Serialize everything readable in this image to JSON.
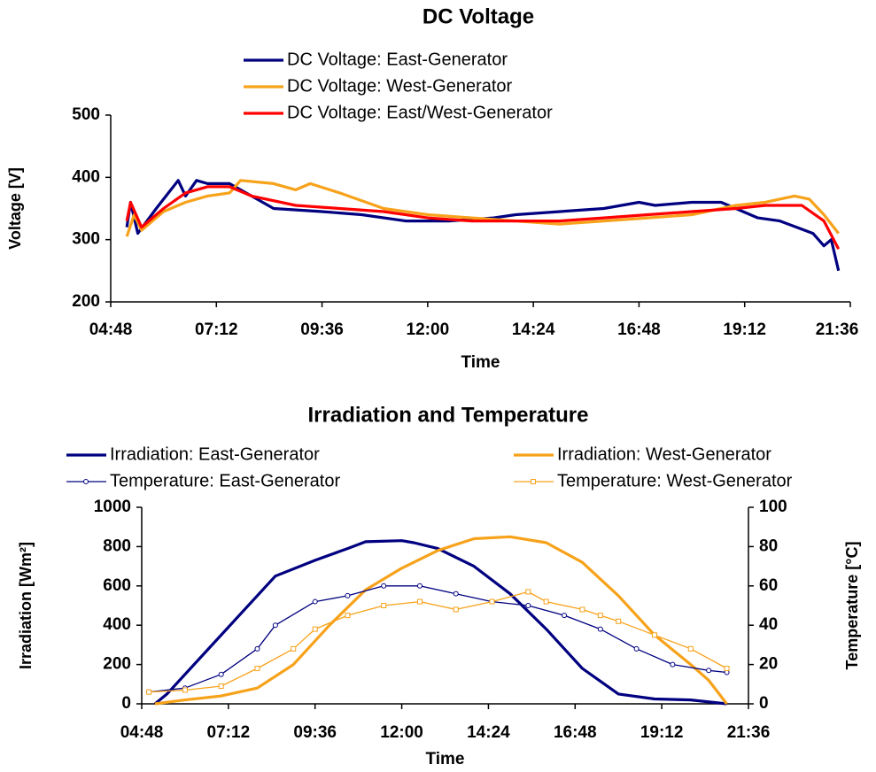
{
  "chart_data": [
    {
      "type": "line",
      "title": "DC Voltage",
      "xlabel": "Time",
      "ylabel": "Voltage [V]",
      "xlim": [
        "04:48",
        "21:36"
      ],
      "xticks": [
        "04:48",
        "07:12",
        "09:36",
        "12:00",
        "14:24",
        "16:48",
        "19:12",
        "21:36"
      ],
      "ylim": [
        200,
        500
      ],
      "yticks": [
        200,
        300,
        400,
        500
      ],
      "series": [
        {
          "name": "DC Voltage: East-Generator",
          "color": "#000080",
          "x": [
            "05:10",
            "05:15",
            "05:25",
            "05:50",
            "06:10",
            "06:20",
            "06:30",
            "06:45",
            "07:00",
            "07:30",
            "08:00",
            "08:30",
            "09:36",
            "10:30",
            "11:30",
            "12:30",
            "13:30",
            "14:00",
            "15:00",
            "16:00",
            "16:48",
            "17:10",
            "18:00",
            "18:40",
            "19:30",
            "20:00",
            "20:45",
            "21:00",
            "21:10",
            "21:20"
          ],
          "values": [
            320,
            360,
            310,
            350,
            380,
            395,
            370,
            395,
            390,
            390,
            370,
            350,
            345,
            340,
            330,
            330,
            335,
            340,
            345,
            350,
            360,
            355,
            360,
            360,
            335,
            330,
            310,
            290,
            300,
            250
          ]
        },
        {
          "name": "DC Voltage: West-Generator",
          "color": "#f7a21b",
          "x": [
            "05:10",
            "05:20",
            "05:30",
            "06:00",
            "06:30",
            "07:00",
            "07:30",
            "07:45",
            "08:30",
            "09:00",
            "09:20",
            "10:00",
            "11:00",
            "12:00",
            "13:00",
            "14:00",
            "15:00",
            "16:00",
            "17:00",
            "18:00",
            "19:00",
            "19:40",
            "20:20",
            "20:40",
            "21:00",
            "21:20"
          ],
          "values": [
            305,
            340,
            315,
            345,
            360,
            370,
            375,
            395,
            390,
            380,
            390,
            375,
            350,
            340,
            335,
            330,
            325,
            330,
            335,
            340,
            355,
            360,
            370,
            365,
            340,
            310
          ]
        },
        {
          "name": "DC Voltage: East/West-Generator",
          "color": "#ff0000",
          "x": [
            "05:10",
            "05:15",
            "05:30",
            "06:00",
            "06:30",
            "07:00",
            "07:30",
            "08:00",
            "09:00",
            "10:00",
            "11:00",
            "12:00",
            "13:00",
            "14:00",
            "15:00",
            "16:00",
            "17:00",
            "18:00",
            "19:00",
            "19:40",
            "20:30",
            "21:00",
            "21:20"
          ],
          "values": [
            330,
            360,
            320,
            350,
            375,
            385,
            385,
            370,
            355,
            350,
            345,
            335,
            330,
            330,
            330,
            335,
            340,
            345,
            350,
            355,
            355,
            330,
            285
          ]
        }
      ]
    },
    {
      "type": "line",
      "title": "Irradiation and Temperature",
      "xlabel": "Time",
      "ylabel": "Irradiation [Wm²]",
      "y2label": "Temperature [°C]",
      "xlim": [
        "04:48",
        "21:36"
      ],
      "xticks": [
        "04:48",
        "07:12",
        "09:36",
        "12:00",
        "14:24",
        "16:48",
        "19:12",
        "21:36"
      ],
      "ylim": [
        0,
        1000
      ],
      "yticks": [
        0,
        200,
        400,
        600,
        800,
        1000
      ],
      "y2lim": [
        0,
        100
      ],
      "y2ticks": [
        0,
        20,
        40,
        60,
        80,
        100
      ],
      "series": [
        {
          "name": "Irradiation: East-Generator",
          "color": "#000080",
          "x": [
            "05:10",
            "05:30",
            "06:30",
            "07:30",
            "08:30",
            "09:36",
            "10:30",
            "11:00",
            "12:00",
            "12:20",
            "13:00",
            "14:00",
            "15:00",
            "16:00",
            "17:00",
            "18:00",
            "19:00",
            "20:00",
            "21:00"
          ],
          "values": [
            0,
            50,
            250,
            450,
            650,
            730,
            790,
            825,
            830,
            820,
            790,
            700,
            560,
            380,
            180,
            50,
            25,
            20,
            0
          ]
        },
        {
          "name": "Irradiation: West-Generator",
          "color": "#f7a21b",
          "x": [
            "05:10",
            "06:00",
            "07:00",
            "08:00",
            "09:00",
            "10:00",
            "11:00",
            "12:00",
            "13:00",
            "14:00",
            "15:00",
            "16:00",
            "17:00",
            "18:00",
            "19:00",
            "20:00",
            "20:30",
            "21:00"
          ],
          "values": [
            0,
            20,
            40,
            80,
            200,
            400,
            580,
            690,
            780,
            840,
            850,
            820,
            720,
            550,
            350,
            200,
            120,
            0
          ]
        },
        {
          "name": "Temperature: East-Generator",
          "color": "#000080",
          "axis": "y2",
          "marker": "circle",
          "x": [
            "05:00",
            "06:00",
            "07:00",
            "08:00",
            "08:30",
            "09:36",
            "10:30",
            "11:30",
            "12:30",
            "13:30",
            "14:30",
            "15:30",
            "16:30",
            "17:30",
            "18:30",
            "19:30",
            "20:30",
            "21:00"
          ],
          "values": [
            6,
            8,
            15,
            28,
            40,
            52,
            55,
            60,
            60,
            56,
            52,
            50,
            45,
            38,
            28,
            20,
            17,
            16
          ]
        },
        {
          "name": "Temperature: West-Generator",
          "color": "#f7a21b",
          "axis": "y2",
          "marker": "square",
          "x": [
            "05:00",
            "06:00",
            "07:00",
            "08:00",
            "09:00",
            "09:36",
            "10:30",
            "11:30",
            "12:30",
            "13:30",
            "14:30",
            "15:30",
            "16:00",
            "17:00",
            "17:30",
            "18:00",
            "19:00",
            "20:00",
            "21:00"
          ],
          "values": [
            6,
            7,
            9,
            18,
            28,
            38,
            45,
            50,
            52,
            48,
            52,
            57,
            52,
            48,
            45,
            42,
            35,
            28,
            18
          ]
        }
      ]
    }
  ]
}
